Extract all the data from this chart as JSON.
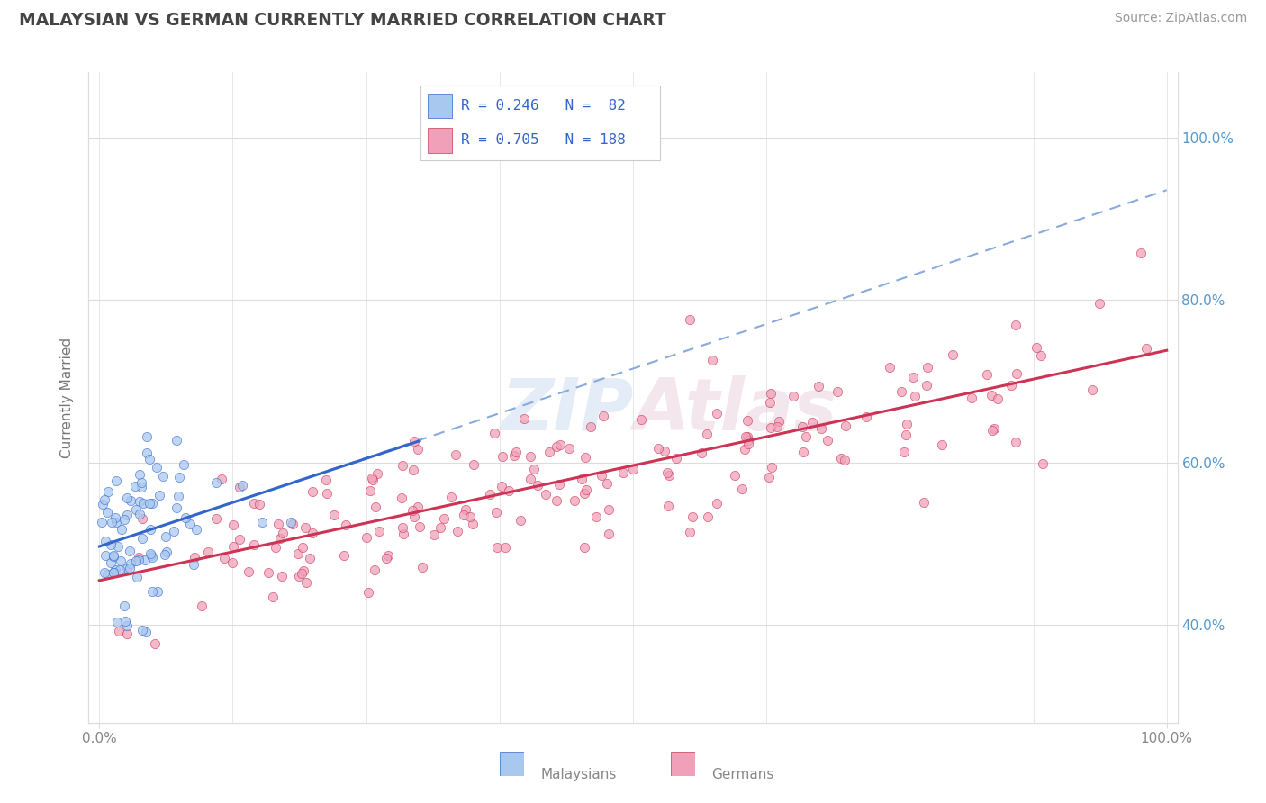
{
  "title": "MALAYSIAN VS GERMAN CURRENTLY MARRIED CORRELATION CHART",
  "source": "Source: ZipAtlas.com",
  "ylabel": "Currently Married",
  "legend_r1": "R = 0.246",
  "legend_n1": "N =  82",
  "legend_r2": "R = 0.705",
  "legend_n2": "N = 188",
  "color_malaysian": "#a8c8f0",
  "color_german": "#f0a0b8",
  "line_color_malaysian": "#3366cc",
  "line_color_german": "#cc3355",
  "dashed_line_color": "#88aadd",
  "watermark_color": "#c8daf0",
  "background_color": "#ffffff",
  "grid_color": "#dddddd",
  "title_color": "#444444",
  "source_color": "#999999",
  "legend_text_color": "#3366cc",
  "axis_label_color": "#5599cc",
  "bottom_label_color": "#888888",
  "n_malaysian": 82,
  "n_german": 188,
  "seed_malaysian": 42,
  "seed_german": 123,
  "ylim_low": 0.28,
  "ylim_high": 1.08,
  "y_ticks": [
    0.4,
    0.6,
    0.8,
    1.0
  ],
  "y_tick_labels": [
    "40.0%",
    "60.0%",
    "80.0%",
    "100.0%"
  ]
}
